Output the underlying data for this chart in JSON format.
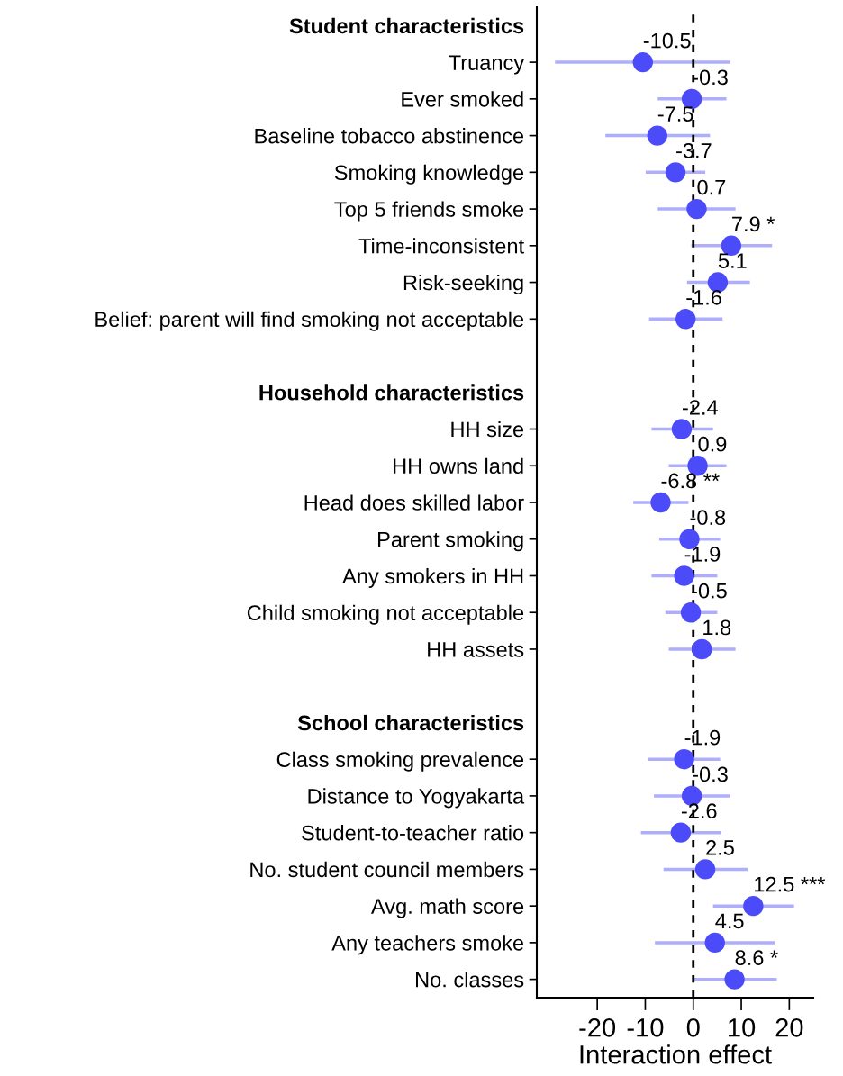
{
  "chart_data": {
    "type": "scatter",
    "orientation": "horizontal",
    "xlabel": "Interaction effect",
    "categories": [
      "Student characteristics",
      "Truancy",
      "Ever smoked",
      "Baseline tobacco abstinence",
      "Smoking knowledge",
      "Top 5 friends smoke",
      "Time-inconsistent",
      "Risk-seeking",
      "Belief: parent will find smoking not acceptable",
      null,
      "Household characteristics",
      "HH size",
      "HH owns land",
      "Head does skilled labor",
      "Parent smoking",
      "Any smokers in HH",
      "Child smoking not acceptable",
      "HH assets",
      null,
      "School characteristics",
      "Class smoking prevalence",
      "Distance to Yogyakarta",
      "Student-to-teacher ratio",
      "No. student council members",
      "Avg. math score",
      "Any teachers smoke",
      "No. classes"
    ],
    "series": [
      {
        "color": "#4b4bfa",
        "values": [
          null,
          -10.5,
          -0.3,
          -7.5,
          -3.7,
          0.7,
          7.9,
          5.1,
          -1.6,
          null,
          null,
          -2.4,
          0.9,
          -6.8,
          -0.8,
          -1.9,
          -0.5,
          1.8,
          null,
          null,
          -1.9,
          -0.3,
          -2.6,
          2.5,
          12.5,
          4.5,
          8.6
        ],
        "errors": [
          null,
          [
            -28.8,
            7.7
          ],
          [
            -7.4,
            6.9
          ],
          [
            -18.3,
            3.5
          ],
          [
            -9.9,
            2.5
          ],
          [
            -7.4,
            8.8
          ],
          [
            -0.4,
            16.4
          ],
          [
            -1.3,
            11.8
          ],
          [
            -9.2,
            6.1
          ],
          null,
          null,
          [
            -8.7,
            4.1
          ],
          [
            -5.1,
            6.9
          ],
          [
            -12.5,
            -1.0
          ],
          [
            -7.1,
            5.6
          ],
          [
            -8.7,
            5.0
          ],
          [
            -5.8,
            5.0
          ],
          [
            -5.1,
            8.8
          ],
          null,
          null,
          [
            -9.4,
            5.6
          ],
          [
            -8.2,
            7.7
          ],
          [
            -10.9,
            5.8
          ],
          [
            -6.2,
            11.3
          ],
          [
            4.1,
            21.0
          ],
          [
            -8.0,
            17.0
          ],
          [
            0.0,
            17.4
          ]
        ],
        "value_labels": [
          null,
          "-10.5",
          "-0.3",
          "-7.5",
          "-3.7",
          "0.7",
          "7.9 *",
          "5.1",
          "-1.6",
          null,
          null,
          "-2.4",
          "0.9",
          "-6.8 **",
          "-0.8",
          "-1.9",
          "-0.5",
          "1.8",
          null,
          null,
          "-1.9",
          "-0.3",
          "-2.6",
          "2.5",
          "12.5 ***",
          "4.5",
          "8.6 *"
        ]
      }
    ],
    "xlim": [
      -32.6,
      25
    ],
    "xticks": [
      -20,
      -10,
      0,
      10,
      20
    ],
    "grid": false,
    "legend": false,
    "marker": "circle",
    "ref_lines": [
      {
        "axis": "x",
        "value": 0,
        "color": "#000000",
        "line_style": "dashed"
      }
    ]
  }
}
